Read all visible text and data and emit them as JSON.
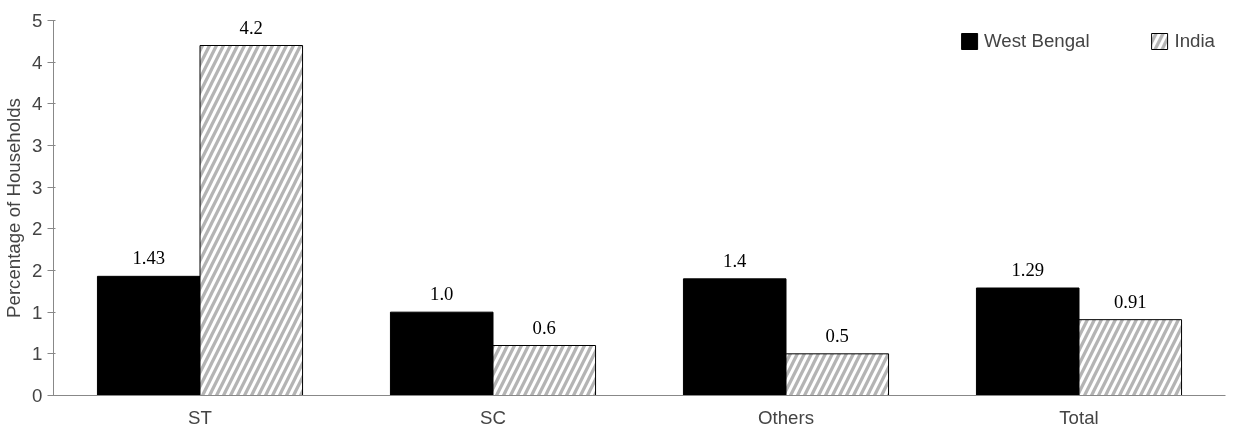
{
  "chart_data": {
    "type": "bar",
    "ylabel": "Percentage of Households",
    "categories": [
      "ST",
      "SC",
      "Others",
      "Total"
    ],
    "series": [
      {
        "name": "West Bengal",
        "color": "#000000",
        "values": [
          1.43,
          1.0,
          1.4,
          1.29
        ],
        "value_labels": [
          "1.43",
          "1.0",
          "1.4",
          "1.29"
        ]
      },
      {
        "name": "India",
        "color": "#b4b4b4",
        "values": [
          4.2,
          0.6,
          0.5,
          0.91
        ],
        "value_labels": [
          "4.2",
          "0.6",
          "0.5",
          "0.91"
        ]
      }
    ],
    "ylim": [
      0,
      4.5
    ],
    "yticks": [
      0,
      {
        "value": 0.5,
        "label": "1"
      },
      1,
      {
        "value": 1.5,
        "label": "2"
      },
      2,
      {
        "value": 2.5,
        "label": "3"
      },
      3,
      {
        "value": 3.5,
        "label": "4"
      },
      4,
      {
        "value": 4.5,
        "label": "5"
      }
    ],
    "grid": false,
    "legend": "top right"
  }
}
